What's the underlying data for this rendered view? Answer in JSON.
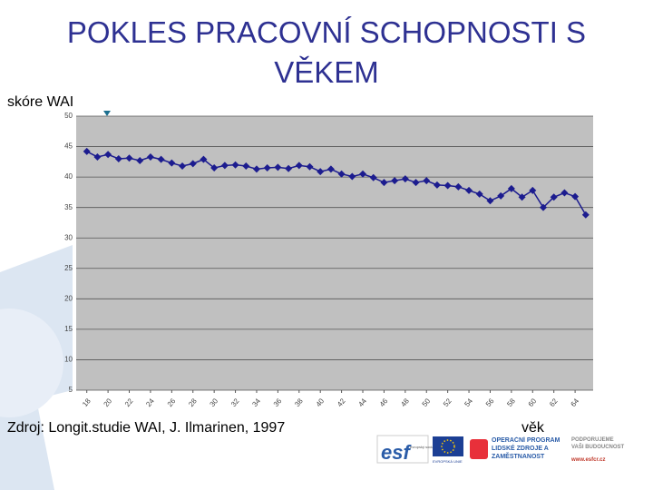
{
  "chart_data": {
    "type": "line",
    "title": "POKLES PRACOVNÍ SCHOPNOSTI S VĚKEM",
    "y_label": "skóre WAI",
    "x_label": "věk",
    "source": "Zdroj: Longit.studie WAI, J. Ilmarinen, 1997",
    "x": [
      18,
      19,
      20,
      21,
      22,
      23,
      24,
      25,
      26,
      27,
      28,
      29,
      30,
      31,
      32,
      33,
      34,
      35,
      36,
      37,
      38,
      39,
      40,
      41,
      42,
      43,
      44,
      45,
      46,
      47,
      48,
      49,
      50,
      51,
      52,
      53,
      54,
      55,
      56,
      57,
      58,
      59,
      60,
      61,
      62,
      63,
      64,
      65
    ],
    "values": [
      44.2,
      43.3,
      43.7,
      43.0,
      43.1,
      42.7,
      43.3,
      42.9,
      42.3,
      41.8,
      42.2,
      42.9,
      41.5,
      41.9,
      42.0,
      41.8,
      41.3,
      41.5,
      41.6,
      41.4,
      41.9,
      41.7,
      40.9,
      41.3,
      40.5,
      40.1,
      40.5,
      39.9,
      39.1,
      39.4,
      39.7,
      39.1,
      39.4,
      38.7,
      38.6,
      38.4,
      37.8,
      37.2,
      36.1,
      36.9,
      38.1,
      36.7,
      37.8,
      35.0,
      36.7,
      37.4,
      36.8,
      33.8
    ],
    "color": "#1c1c8f",
    "xlim": [
      17,
      65.7
    ],
    "xticks": [
      18,
      20,
      22,
      24,
      26,
      28,
      30,
      32,
      34,
      36,
      38,
      40,
      42,
      44,
      46,
      48,
      50,
      52,
      54,
      56,
      58,
      60,
      62,
      64
    ],
    "ylim": [
      5,
      50
    ],
    "yticks": [
      5,
      10,
      15,
      20,
      25,
      30,
      35,
      40,
      45,
      50
    ],
    "grid": true
  },
  "logos": {
    "esf": "esf",
    "esf_text": "evropský sociální fond v ČR",
    "eu": "EVROPSKÁ UNIE",
    "op": "OPERAČNÍ PROGRAM LIDSKÉ ZDROJE A ZAMĚSTNANOST",
    "support": "PODPORUJEME VAŠI BUDOUCNOST",
    "web": "www.esfcr.cz"
  }
}
